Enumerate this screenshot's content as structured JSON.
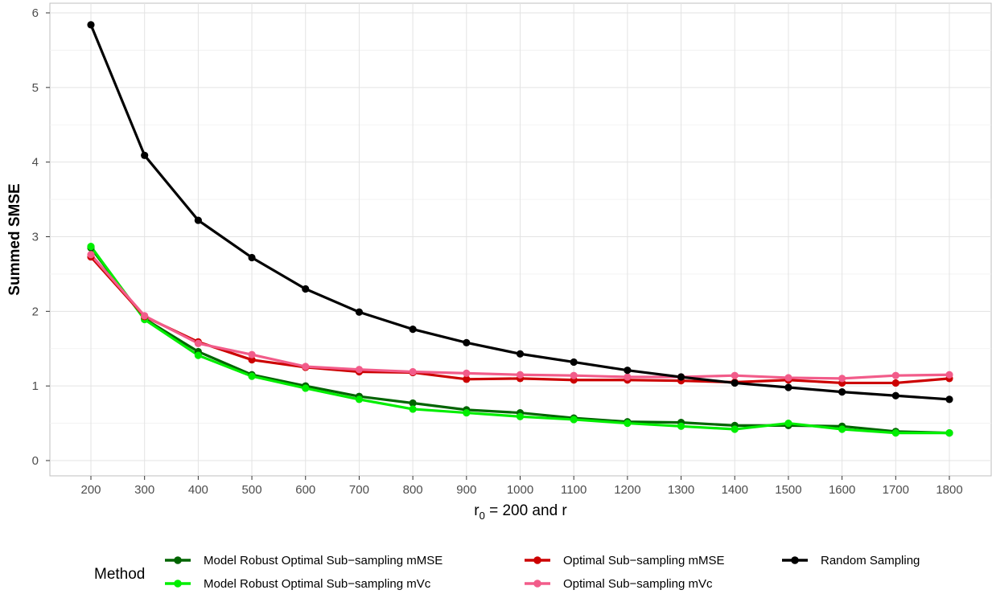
{
  "chart_data": {
    "type": "line",
    "title": "",
    "xlabel_main": "r",
    "xlabel_sub": "0",
    "xlabel_rest": " = 200 and r",
    "ylabel": "Summed SMSE",
    "x": [
      200,
      300,
      400,
      500,
      600,
      700,
      800,
      900,
      1000,
      1100,
      1200,
      1300,
      1400,
      1500,
      1600,
      1700,
      1800
    ],
    "y_ticks": [
      0,
      1,
      2,
      3,
      4,
      5,
      6
    ],
    "xlim": [
      200,
      1800
    ],
    "ylim": [
      0,
      6
    ],
    "grid": true,
    "legend_position": "bottom",
    "legend_title": "Method",
    "series": [
      {
        "name": "Model Robust Optimal Sub−sampling mMSE",
        "color": "#006400",
        "values": [
          2.85,
          1.9,
          1.46,
          1.15,
          1.0,
          0.86,
          0.77,
          0.68,
          0.64,
          0.57,
          0.52,
          0.51,
          0.47,
          0.47,
          0.46,
          0.39,
          0.37
        ]
      },
      {
        "name": "Model Robust Optimal Sub−sampling mVc",
        "color": "#00ee00",
        "values": [
          2.87,
          1.89,
          1.41,
          1.13,
          0.97,
          0.82,
          0.69,
          0.64,
          0.59,
          0.55,
          0.5,
          0.46,
          0.42,
          0.5,
          0.42,
          0.37,
          0.37
        ]
      },
      {
        "name": "Optimal Sub−sampling mMSE",
        "color": "#cc0000",
        "values": [
          2.73,
          1.93,
          1.59,
          1.35,
          1.25,
          1.19,
          1.18,
          1.09,
          1.1,
          1.08,
          1.08,
          1.07,
          1.05,
          1.08,
          1.04,
          1.04,
          1.1
        ]
      },
      {
        "name": "Optimal Sub−sampling mVc",
        "color": "#f25c8a",
        "values": [
          2.76,
          1.94,
          1.57,
          1.42,
          1.26,
          1.22,
          1.19,
          1.17,
          1.15,
          1.14,
          1.12,
          1.12,
          1.14,
          1.11,
          1.1,
          1.14,
          1.15
        ]
      },
      {
        "name": "Random Sampling",
        "color": "#000000",
        "values": [
          5.84,
          4.09,
          3.22,
          2.72,
          2.3,
          1.99,
          1.76,
          1.58,
          1.43,
          1.32,
          1.21,
          1.12,
          1.04,
          0.98,
          0.92,
          0.87,
          0.82
        ]
      }
    ]
  }
}
